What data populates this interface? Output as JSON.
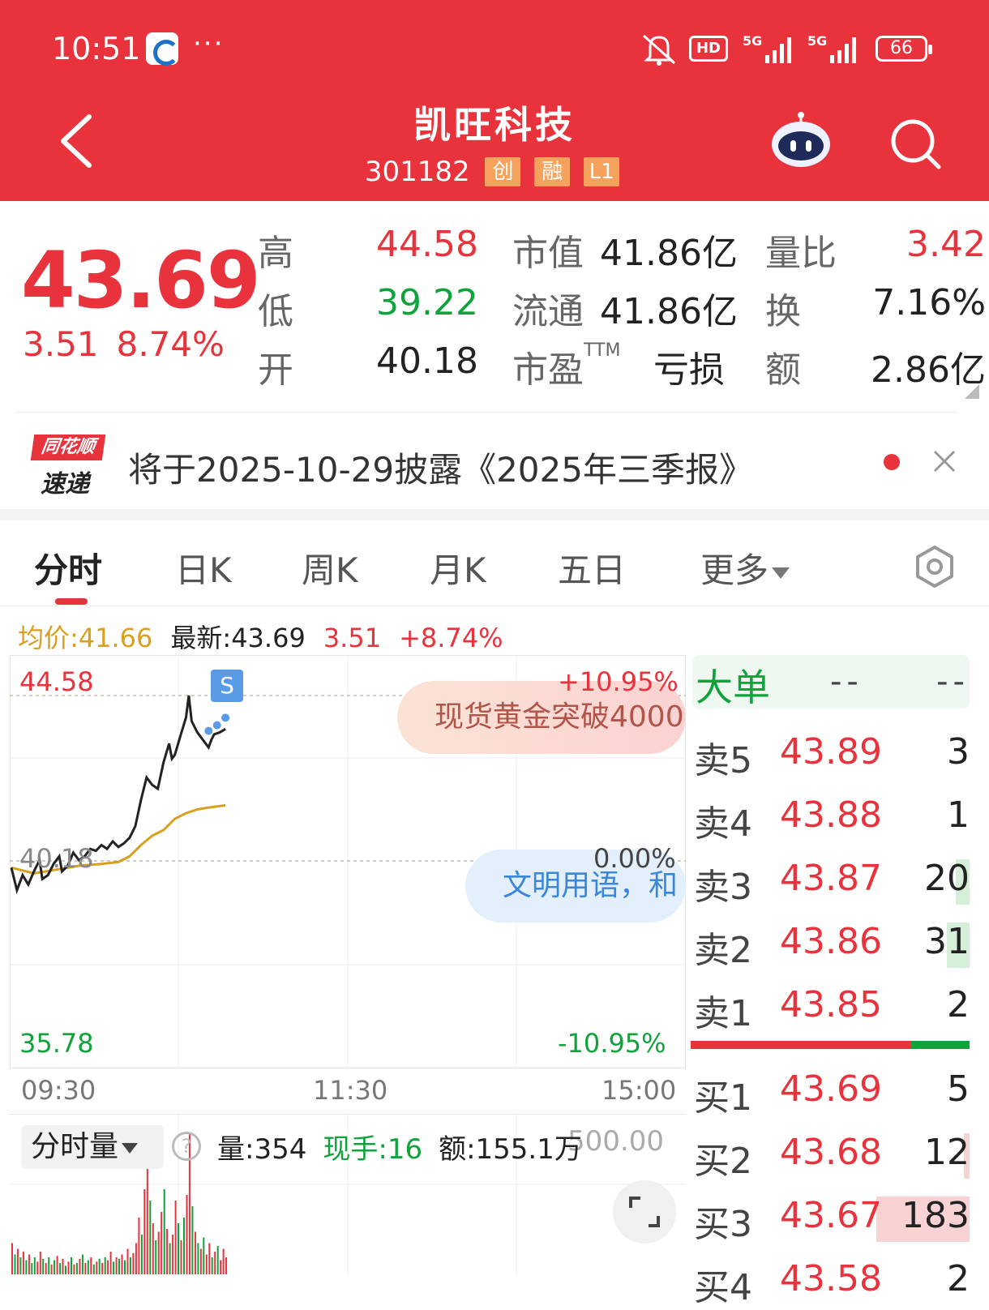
{
  "status_bar": {
    "time": "10:51",
    "dots": "···",
    "hd": "HD",
    "battery": "66",
    "net_label": "5G",
    "icons": [
      "app-notification-icon",
      "mute-icon",
      "hd-call-icon",
      "signal-5g-icon",
      "signal-5g-icon",
      "battery-icon"
    ]
  },
  "header": {
    "title": "凯旺科技",
    "code": "301182",
    "tags": [
      "创",
      "融",
      "L1"
    ]
  },
  "quote": {
    "price": "43.69",
    "change": "3.51",
    "change_pct": "8.74%",
    "high_label": "高",
    "high": "44.58",
    "low_label": "低",
    "low": "39.22",
    "open_label": "开",
    "open": "40.18",
    "mktcap_label": "市值",
    "mktcap": "41.86亿",
    "float_label": "流通",
    "float": "41.86亿",
    "pe_label": "市盈",
    "pe_sup": "TTM",
    "pe": "亏损",
    "volratio_label": "量比",
    "volratio": "3.42",
    "turnover_label": "换",
    "turnover": "7.16%",
    "amount_label": "额",
    "amount": "2.86亿"
  },
  "news": {
    "logo_top": "同花顺",
    "logo_bottom": "速递",
    "text": "将于2025-10-29披露《2025年三季报》"
  },
  "tabs": [
    {
      "label": "分时",
      "active": true
    },
    {
      "label": "日K"
    },
    {
      "label": "周K"
    },
    {
      "label": "月K"
    },
    {
      "label": "五日"
    },
    {
      "label": "更多"
    }
  ],
  "info": {
    "avg": "均价:41.66",
    "latest": "最新:43.69",
    "change": "3.51",
    "pct": "+8.74%"
  },
  "chart_data": {
    "type": "line",
    "y_max_label": "44.58",
    "y_mid_label": "40.18",
    "y_min_label": "35.78",
    "pct_max_label": "+10.95%",
    "pct_mid_label": "0.00%",
    "pct_min_label": "-10.95%",
    "x_labels": [
      "09:30",
      "11:30",
      "15:00"
    ],
    "y_range": [
      35.78,
      44.58
    ],
    "prev_close": 40.18,
    "session_minutes": 240,
    "price_series": [
      [
        0,
        40.0
      ],
      [
        2,
        39.4
      ],
      [
        4,
        39.8
      ],
      [
        6,
        39.55
      ],
      [
        8,
        39.9
      ],
      [
        10,
        40.2
      ],
      [
        11,
        39.7
      ],
      [
        13,
        39.8
      ],
      [
        15,
        40.1
      ],
      [
        17,
        40.3
      ],
      [
        18,
        39.9
      ],
      [
        20,
        40.05
      ],
      [
        22,
        40.4
      ],
      [
        24,
        40.2
      ],
      [
        26,
        40.3
      ],
      [
        28,
        40.5
      ],
      [
        30,
        40.45
      ],
      [
        32,
        40.6
      ],
      [
        34,
        40.5
      ],
      [
        36,
        40.7
      ],
      [
        38,
        40.55
      ],
      [
        40,
        40.65
      ],
      [
        42,
        40.8
      ],
      [
        44,
        41.1
      ],
      [
        46,
        41.8
      ],
      [
        48,
        42.4
      ],
      [
        50,
        42.2
      ],
      [
        52,
        42.1
      ],
      [
        54,
        42.8
      ],
      [
        56,
        43.3
      ],
      [
        57,
        42.9
      ],
      [
        58,
        43.0
      ],
      [
        60,
        43.5
      ],
      [
        62,
        44.0
      ],
      [
        63,
        44.58
      ],
      [
        64,
        43.9
      ],
      [
        66,
        43.6
      ],
      [
        68,
        43.4
      ],
      [
        70,
        43.2
      ],
      [
        71,
        43.4
      ],
      [
        72,
        43.55
      ],
      [
        74,
        43.6
      ],
      [
        76,
        43.69
      ]
    ],
    "avg_series": [
      [
        0,
        40.0
      ],
      [
        8,
        39.85
      ],
      [
        16,
        39.95
      ],
      [
        24,
        40.05
      ],
      [
        32,
        40.1
      ],
      [
        38,
        40.15
      ],
      [
        42,
        40.3
      ],
      [
        46,
        40.6
      ],
      [
        50,
        40.85
      ],
      [
        54,
        41.0
      ],
      [
        58,
        41.3
      ],
      [
        62,
        41.45
      ],
      [
        66,
        41.55
      ],
      [
        70,
        41.6
      ],
      [
        76,
        41.66
      ]
    ],
    "bubbles": [
      "现货黄金突破4000",
      "文明用语，和"
    ],
    "badge": "S"
  },
  "volume": {
    "selector": "分时量",
    "vol": "量:354",
    "hand": "现手:16",
    "amount": "额:155.1万",
    "max": "500.00",
    "bars": [
      {
        "t": 0,
        "v": 110,
        "c": "r"
      },
      {
        "t": 1,
        "v": 70,
        "c": "g"
      },
      {
        "t": 2,
        "v": 90,
        "c": "r"
      },
      {
        "t": 3,
        "v": 60,
        "c": "g"
      },
      {
        "t": 4,
        "v": 80,
        "c": "r"
      },
      {
        "t": 5,
        "v": 50,
        "c": "g"
      },
      {
        "t": 6,
        "v": 70,
        "c": "r"
      },
      {
        "t": 7,
        "v": 40,
        "c": "g"
      },
      {
        "t": 8,
        "v": 60,
        "c": "g"
      },
      {
        "t": 9,
        "v": 45,
        "c": "r"
      },
      {
        "t": 10,
        "v": 80,
        "c": "r"
      },
      {
        "t": 11,
        "v": 55,
        "c": "g"
      },
      {
        "t": 12,
        "v": 40,
        "c": "r"
      },
      {
        "t": 13,
        "v": 60,
        "c": "g"
      },
      {
        "t": 14,
        "v": 35,
        "c": "r"
      },
      {
        "t": 15,
        "v": 50,
        "c": "g"
      },
      {
        "t": 16,
        "v": 65,
        "c": "r"
      },
      {
        "t": 17,
        "v": 40,
        "c": "g"
      },
      {
        "t": 18,
        "v": 55,
        "c": "r"
      },
      {
        "t": 19,
        "v": 30,
        "c": "g"
      },
      {
        "t": 20,
        "v": 45,
        "c": "r"
      },
      {
        "t": 21,
        "v": 60,
        "c": "g"
      },
      {
        "t": 22,
        "v": 35,
        "c": "r"
      },
      {
        "t": 23,
        "v": 40,
        "c": "g"
      },
      {
        "t": 24,
        "v": 55,
        "c": "r"
      },
      {
        "t": 25,
        "v": 70,
        "c": "g"
      },
      {
        "t": 26,
        "v": 40,
        "c": "r"
      },
      {
        "t": 27,
        "v": 50,
        "c": "g"
      },
      {
        "t": 28,
        "v": 60,
        "c": "r"
      },
      {
        "t": 29,
        "v": 35,
        "c": "g"
      },
      {
        "t": 30,
        "v": 45,
        "c": "r"
      },
      {
        "t": 31,
        "v": 55,
        "c": "g"
      },
      {
        "t": 32,
        "v": 40,
        "c": "r"
      },
      {
        "t": 33,
        "v": 60,
        "c": "g"
      },
      {
        "t": 34,
        "v": 50,
        "c": "r"
      },
      {
        "t": 35,
        "v": 80,
        "c": "r"
      },
      {
        "t": 36,
        "v": 45,
        "c": "g"
      },
      {
        "t": 37,
        "v": 60,
        "c": "r"
      },
      {
        "t": 38,
        "v": 55,
        "c": "g"
      },
      {
        "t": 39,
        "v": 70,
        "c": "r"
      },
      {
        "t": 40,
        "v": 50,
        "c": "g"
      },
      {
        "t": 41,
        "v": 90,
        "c": "r"
      },
      {
        "t": 42,
        "v": 60,
        "c": "g"
      },
      {
        "t": 43,
        "v": 75,
        "c": "r"
      },
      {
        "t": 44,
        "v": 110,
        "c": "r"
      },
      {
        "t": 45,
        "v": 200,
        "c": "r"
      },
      {
        "t": 46,
        "v": 140,
        "c": "g"
      },
      {
        "t": 47,
        "v": 300,
        "c": "r"
      },
      {
        "t": 48,
        "v": 380,
        "c": "r"
      },
      {
        "t": 49,
        "v": 260,
        "c": "g"
      },
      {
        "t": 50,
        "v": 180,
        "c": "r"
      },
      {
        "t": 51,
        "v": 120,
        "c": "g"
      },
      {
        "t": 52,
        "v": 150,
        "c": "r"
      },
      {
        "t": 53,
        "v": 220,
        "c": "r"
      },
      {
        "t": 54,
        "v": 300,
        "c": "g"
      },
      {
        "t": 55,
        "v": 160,
        "c": "r"
      },
      {
        "t": 56,
        "v": 110,
        "c": "g"
      },
      {
        "t": 57,
        "v": 140,
        "c": "r"
      },
      {
        "t": 58,
        "v": 260,
        "c": "r"
      },
      {
        "t": 59,
        "v": 180,
        "c": "g"
      },
      {
        "t": 60,
        "v": 120,
        "c": "r"
      },
      {
        "t": 61,
        "v": 200,
        "c": "g"
      },
      {
        "t": 62,
        "v": 280,
        "c": "r"
      },
      {
        "t": 63,
        "v": 500,
        "c": "r"
      },
      {
        "t": 64,
        "v": 240,
        "c": "g"
      },
      {
        "t": 65,
        "v": 150,
        "c": "r"
      },
      {
        "t": 66,
        "v": 110,
        "c": "g"
      },
      {
        "t": 67,
        "v": 90,
        "c": "r"
      },
      {
        "t": 68,
        "v": 130,
        "c": "g"
      },
      {
        "t": 69,
        "v": 70,
        "c": "r"
      },
      {
        "t": 70,
        "v": 110,
        "c": "r"
      },
      {
        "t": 71,
        "v": 60,
        "c": "g"
      },
      {
        "t": 72,
        "v": 80,
        "c": "r"
      },
      {
        "t": 73,
        "v": 100,
        "c": "g"
      },
      {
        "t": 74,
        "v": 50,
        "c": "r"
      },
      {
        "t": 75,
        "v": 90,
        "c": "r"
      },
      {
        "t": 76,
        "v": 60,
        "c": "r"
      }
    ]
  },
  "book": {
    "big_label": "大单",
    "big_v1": "--",
    "big_v2": "--",
    "asks": [
      {
        "label": "卖5",
        "price": "43.89",
        "qty": "3",
        "bar": 0
      },
      {
        "label": "卖4",
        "price": "43.88",
        "qty": "1",
        "bar": 0
      },
      {
        "label": "卖3",
        "price": "43.87",
        "qty": "20",
        "bar": 0.05
      },
      {
        "label": "卖2",
        "price": "43.86",
        "qty": "31",
        "bar": 0.08
      }
    ],
    "ask1": {
      "label": "卖1",
      "price": "43.85",
      "qty": "2",
      "bar": 0
    },
    "split": 0.79,
    "bids": [
      {
        "label": "买1",
        "price": "43.69",
        "qty": "5",
        "bar": 0
      },
      {
        "label": "买2",
        "price": "43.68",
        "qty": "12",
        "bar": 0.02
      },
      {
        "label": "买3",
        "price": "43.67",
        "qty": "183",
        "bar": 0.33
      },
      {
        "label": "买4",
        "price": "43.58",
        "qty": "2",
        "bar": 0
      }
    ]
  },
  "colors": {
    "up": "#e8323c",
    "down": "#11a33b",
    "avg_line": "#d9a020",
    "price_line": "#222222",
    "header": "#e8323c"
  }
}
